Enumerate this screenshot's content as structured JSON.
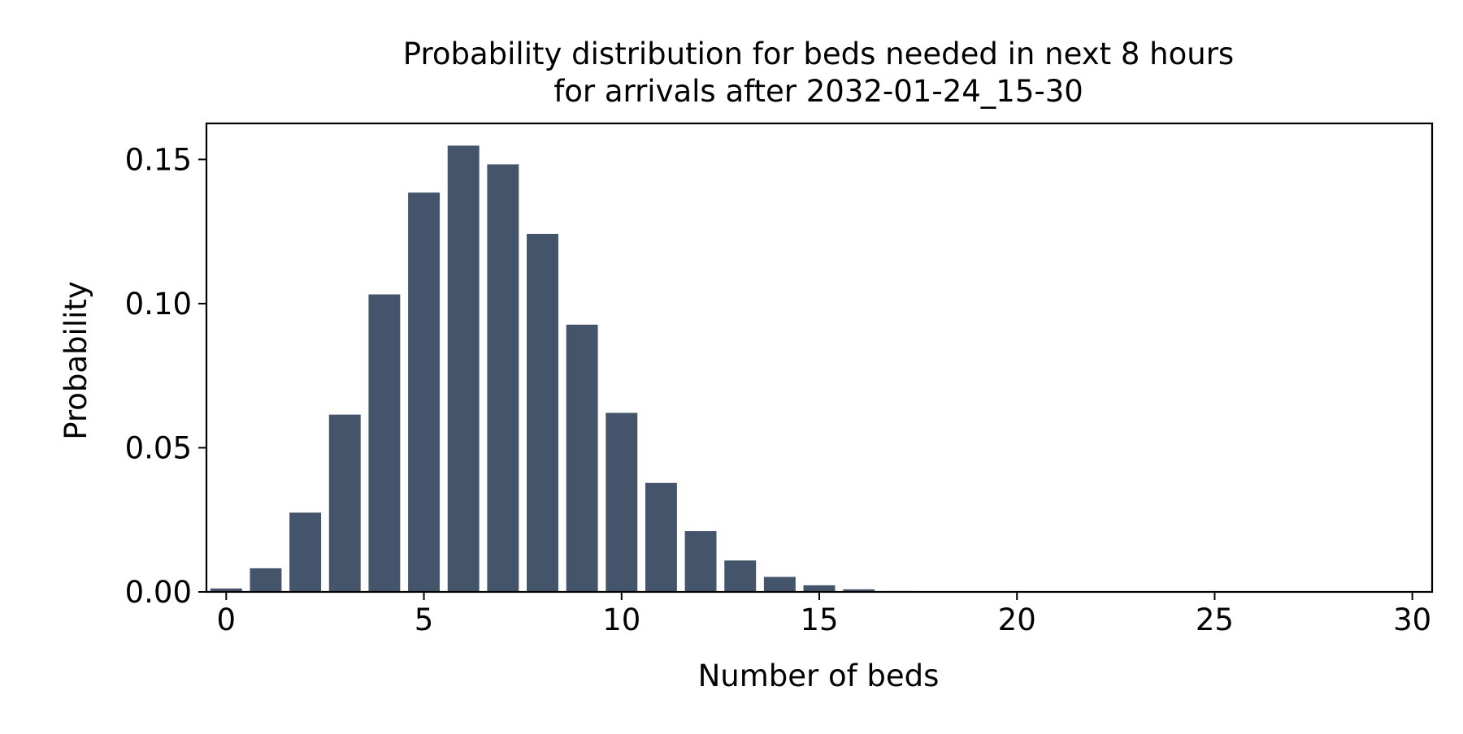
{
  "chart_data": {
    "type": "bar",
    "title_line1": "Probability distribution for beds needed in next 8 hours",
    "title_line2": "for arrivals after 2032-01-24_15-30",
    "xlabel": "Number of beds",
    "ylabel": "Probability",
    "x": [
      0,
      1,
      2,
      3,
      4,
      5,
      6,
      7,
      8,
      9,
      10,
      11,
      12,
      13,
      14,
      15,
      16,
      17,
      18,
      19,
      20,
      21,
      22,
      23,
      24,
      25,
      26,
      27,
      28,
      29,
      30
    ],
    "values": [
      0.0012,
      0.0082,
      0.0275,
      0.0615,
      0.1032,
      0.1385,
      0.1548,
      0.1483,
      0.1242,
      0.0927,
      0.0621,
      0.0378,
      0.0211,
      0.0109,
      0.0052,
      0.0023,
      0.0009,
      0.0003,
      0.0001,
      3e-05,
      1e-05,
      0,
      0,
      0,
      0,
      0,
      0,
      0,
      0,
      0,
      0
    ],
    "xlim": [
      -0.5,
      30.5
    ],
    "ylim": [
      0,
      0.1625
    ],
    "xticks": [
      0,
      5,
      10,
      15,
      20,
      25,
      30
    ],
    "xtick_labels": [
      "0",
      "5",
      "10",
      "15",
      "20",
      "25",
      "30"
    ],
    "yticks": [
      0,
      0.05,
      0.1,
      0.15
    ],
    "ytick_labels": [
      "0.00",
      "0.05",
      "0.10",
      "0.15"
    ],
    "bar_color": "#44546a",
    "grid": false,
    "legend": "none"
  }
}
